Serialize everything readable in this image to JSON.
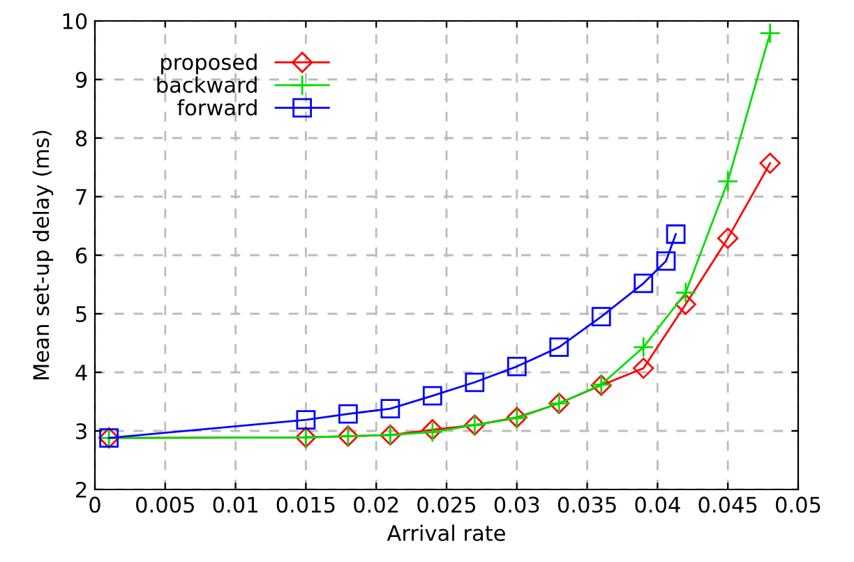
{
  "chart_data": {
    "type": "line",
    "xlabel": "Arrival rate",
    "ylabel": "Mean set-up delay (ms)",
    "xlim": [
      0,
      0.05
    ],
    "xticks": [
      0,
      0.005,
      0.01,
      0.015,
      0.02,
      0.025,
      0.03,
      0.035,
      0.04,
      0.045,
      0.05
    ],
    "ylim": [
      2,
      10
    ],
    "yticks": [
      2,
      3,
      4,
      5,
      6,
      7,
      8,
      9,
      10
    ],
    "grid": true,
    "legend": "top left",
    "line_style": "solid",
    "series": [
      {
        "name": "proposed",
        "color": "#ff0000",
        "marker": "diamond",
        "x": [
          0.001,
          0.015,
          0.018,
          0.021,
          0.024,
          0.027,
          0.03,
          0.033,
          0.036,
          0.039,
          0.042,
          0.045,
          0.048
        ],
        "values": [
          2.88,
          2.89,
          2.91,
          2.93,
          3.02,
          3.1,
          3.23,
          3.47,
          3.78,
          4.07,
          5.16,
          6.29,
          7.57
        ]
      },
      {
        "name": "backward",
        "color": "#00dd00",
        "marker": "cross",
        "x": [
          0.001,
          0.015,
          0.018,
          0.021,
          0.024,
          0.027,
          0.03,
          0.033,
          0.036,
          0.039,
          0.042,
          0.045,
          0.048
        ],
        "values": [
          2.88,
          2.89,
          2.91,
          2.93,
          2.98,
          3.1,
          3.22,
          3.47,
          3.79,
          4.43,
          5.36,
          7.26,
          9.79
        ]
      },
      {
        "name": "forward",
        "color": "#0000ff",
        "marker": "square",
        "x": [
          0.001,
          0.015,
          0.018,
          0.021,
          0.024,
          0.027,
          0.03,
          0.033,
          0.036,
          0.039,
          0.0406,
          0.0413
        ],
        "values": [
          2.88,
          3.19,
          3.29,
          3.38,
          3.6,
          3.83,
          4.1,
          4.43,
          4.95,
          5.52,
          5.9,
          6.36
        ]
      }
    ]
  }
}
